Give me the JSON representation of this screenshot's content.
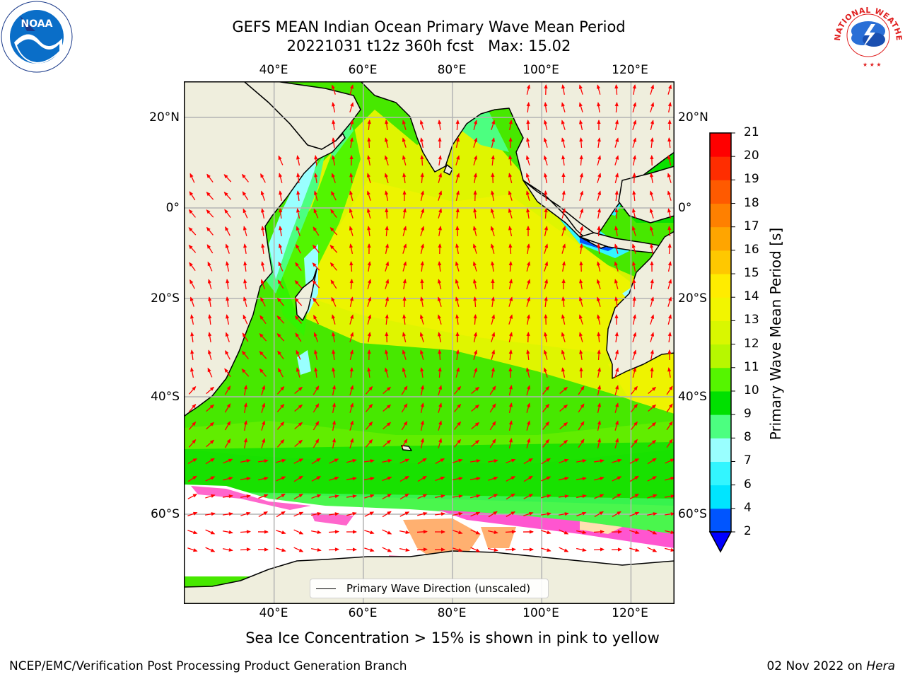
{
  "title": {
    "line1": "GEFS MEAN Indian Ocean Primary Wave Mean Period",
    "line2": "20221031 t12z 360h fcst   Max: 15.02"
  },
  "map": {
    "lon_labels": [
      "40°E",
      "60°E",
      "80°E",
      "100°E",
      "120°E"
    ],
    "lat_labels": [
      "20°N",
      "0°",
      "20°S",
      "40°S",
      "60°S"
    ],
    "lon_range": [
      20,
      130
    ],
    "lat_range": [
      -77,
      28
    ],
    "land_color": "#efeedd",
    "ocean_color": "#47e800",
    "arrow_color": "#ff0000",
    "legend": "Primary Wave Direction (unscaled)"
  },
  "colorbar": {
    "label": "Primary Wave Mean Period [s]",
    "tick_labels": [
      "2",
      "4",
      "6",
      "7",
      "8",
      "9",
      "10",
      "11",
      "12",
      "13",
      "14",
      "15",
      "16",
      "17",
      "18",
      "19",
      "20",
      "21"
    ],
    "colors": [
      "#0055ff",
      "#00e5ff",
      "#33f5ff",
      "#99ffff",
      "#4cff80",
      "#00e000",
      "#55f500",
      "#b7f700",
      "#d9f700",
      "#f2f500",
      "#ffec00",
      "#ffc800",
      "#ffa500",
      "#ff8000",
      "#ff5a00",
      "#ff2d00",
      "#ff0000"
    ],
    "under_color": "#0000ff"
  },
  "subtitle": "Sea Ice Concentration > 15% is shown in pink to yellow",
  "footer": {
    "credit": "NCEP/EMC/Verification Post Processing Product Generation Branch",
    "date": "02 Nov 2022 on ",
    "machine": "Hera"
  },
  "logos": {
    "noaa": "NOAA",
    "nws": "NATIONAL WEATHER SERVICE"
  }
}
